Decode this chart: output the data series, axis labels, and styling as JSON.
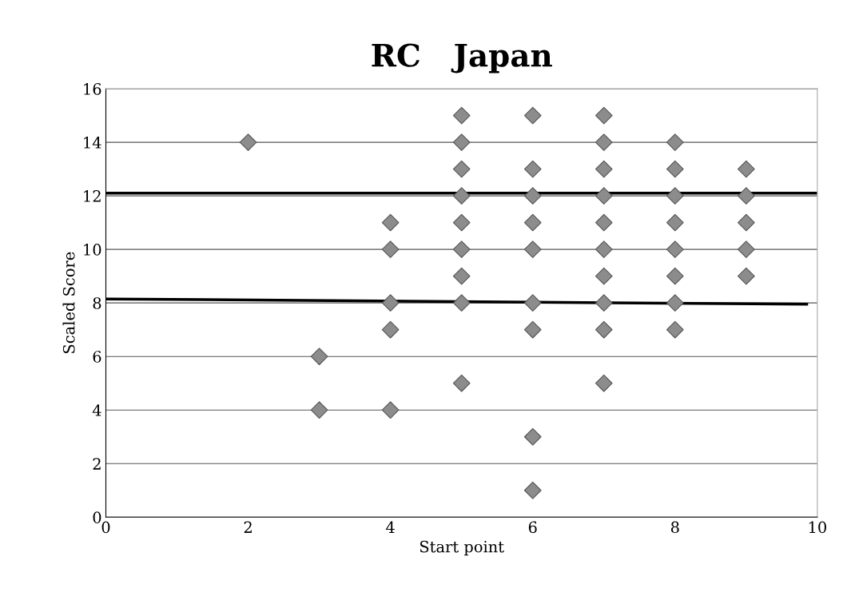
{
  "chart_data": {
    "type": "scatter",
    "title": "RC   Japan",
    "xlabel": "Start point",
    "ylabel": "Scaled Score",
    "xlim": [
      0,
      10
    ],
    "xticks": [
      0,
      2,
      4,
      6,
      8,
      10
    ],
    "ylim": [
      0,
      16
    ],
    "yticks": [
      0,
      2,
      4,
      6,
      8,
      10,
      12,
      14,
      16
    ],
    "grid": "y",
    "legend": false,
    "series": [
      {
        "marker": "diamond",
        "color": "#8c8c8c",
        "x": [
          2,
          3,
          3,
          4,
          4,
          4,
          4,
          4,
          5,
          5,
          5,
          5,
          5,
          5,
          5,
          5,
          5,
          6,
          6,
          6,
          6,
          6,
          6,
          6,
          6,
          6,
          7,
          7,
          7,
          7,
          7,
          7,
          7,
          7,
          7,
          7,
          8,
          8,
          8,
          8,
          8,
          8,
          8,
          8,
          9,
          9,
          9,
          9,
          9
        ],
        "values": [
          14,
          6,
          4,
          11,
          10,
          8,
          7,
          4,
          15,
          14,
          13,
          12,
          11,
          10,
          9,
          8,
          5,
          15,
          13,
          12,
          11,
          10,
          8,
          7,
          3,
          1,
          15,
          14,
          13,
          12,
          11,
          10,
          9,
          8,
          7,
          5,
          14,
          13,
          12,
          11,
          10,
          9,
          8,
          7,
          13,
          12,
          11,
          10,
          9
        ]
      },
      {
        "type": "line",
        "color": "#000000",
        "marker": "none",
        "x": [
          0,
          10
        ],
        "values": [
          12.1,
          12.1
        ]
      },
      {
        "type": "line",
        "color": "#000000",
        "marker": "none",
        "x": [
          0,
          9.85
        ],
        "values": [
          8.15,
          7.95
        ]
      }
    ]
  }
}
